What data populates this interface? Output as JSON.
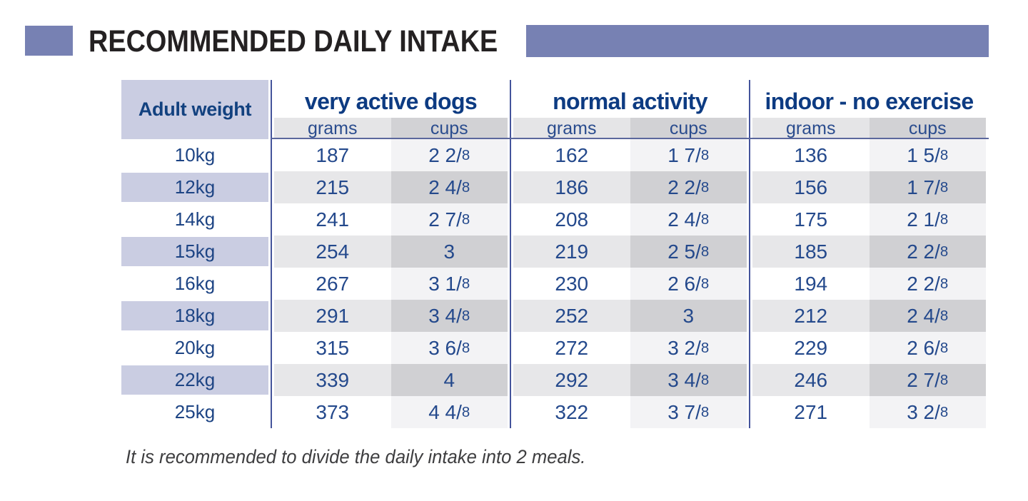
{
  "title": "RECOMMENDED DAILY INTAKE",
  "note": "It is recommended to divide the daily intake into 2 meals.",
  "colors": {
    "accent_purple": "#7781b3",
    "header_cell_purple": "#cacde2",
    "navy_text": "#15417f",
    "divider_navy": "#44549b",
    "subheader_grams_bg": "#e5e5e7",
    "subheader_cups_bg": "#d2d2d5",
    "shaded_row_grams_bg": "#e7e7e9",
    "shaded_row_cups_bg": "#d0d0d3",
    "light_cups_bg": "#f3f3f5"
  },
  "table": {
    "weight_header": "Adult weight",
    "groups": [
      {
        "label": "very active dogs"
      },
      {
        "label": "normal activity"
      },
      {
        "label": "indoor - no exercise"
      }
    ],
    "units": {
      "grams": "grams",
      "cups": "cups"
    },
    "rows": [
      {
        "weight": "10kg",
        "values": [
          {
            "grams": "187",
            "cups": "2 2/8"
          },
          {
            "grams": "162",
            "cups": "1 7/8"
          },
          {
            "grams": "136",
            "cups": "1 5/8"
          }
        ]
      },
      {
        "weight": "12kg",
        "values": [
          {
            "grams": "215",
            "cups": "2 4/8"
          },
          {
            "grams": "186",
            "cups": "2 2/8"
          },
          {
            "grams": "156",
            "cups": "1 7/8"
          }
        ]
      },
      {
        "weight": "14kg",
        "values": [
          {
            "grams": "241",
            "cups": "2 7/8"
          },
          {
            "grams": "208",
            "cups": "2 4/8"
          },
          {
            "grams": "175",
            "cups": "2 1/8"
          }
        ]
      },
      {
        "weight": "15kg",
        "values": [
          {
            "grams": "254",
            "cups": "3"
          },
          {
            "grams": "219",
            "cups": "2 5/8"
          },
          {
            "grams": "185",
            "cups": "2 2/8"
          }
        ]
      },
      {
        "weight": "16kg",
        "values": [
          {
            "grams": "267",
            "cups": "3 1/8"
          },
          {
            "grams": "230",
            "cups": "2 6/8"
          },
          {
            "grams": "194",
            "cups": "2 2/8"
          }
        ]
      },
      {
        "weight": "18kg",
        "values": [
          {
            "grams": "291",
            "cups": "3 4/8"
          },
          {
            "grams": "252",
            "cups": "3"
          },
          {
            "grams": "212",
            "cups": "2 4/8"
          }
        ]
      },
      {
        "weight": "20kg",
        "values": [
          {
            "grams": "315",
            "cups": "3 6/8"
          },
          {
            "grams": "272",
            "cups": "3 2/8"
          },
          {
            "grams": "229",
            "cups": "2 6/8"
          }
        ]
      },
      {
        "weight": "22kg",
        "values": [
          {
            "grams": "339",
            "cups": "4"
          },
          {
            "grams": "292",
            "cups": "3 4/8"
          },
          {
            "grams": "246",
            "cups": "2 7/8"
          }
        ]
      },
      {
        "weight": "25kg",
        "values": [
          {
            "grams": "373",
            "cups": "4 4/8"
          },
          {
            "grams": "322",
            "cups": "3 7/8"
          },
          {
            "grams": "271",
            "cups": "3 2/8"
          }
        ]
      }
    ]
  },
  "chart_data": {
    "type": "table",
    "title": "RECOMMENDED DAILY INTAKE",
    "columns": [
      "Adult weight",
      "very active dogs — grams",
      "very active dogs — cups",
      "normal activity — grams",
      "normal activity — cups",
      "indoor - no exercise — grams",
      "indoor - no exercise — cups"
    ],
    "rows": [
      [
        "10kg",
        187,
        "2 2/8",
        162,
        "1 7/8",
        136,
        "1 5/8"
      ],
      [
        "12kg",
        215,
        "2 4/8",
        186,
        "2 2/8",
        156,
        "1 7/8"
      ],
      [
        "14kg",
        241,
        "2 7/8",
        208,
        "2 4/8",
        175,
        "2 1/8"
      ],
      [
        "15kg",
        254,
        "3",
        219,
        "2 5/8",
        185,
        "2 2/8"
      ],
      [
        "16kg",
        267,
        "3 1/8",
        230,
        "2 6/8",
        194,
        "2 2/8"
      ],
      [
        "18kg",
        291,
        "3 4/8",
        252,
        "3",
        212,
        "2 4/8"
      ],
      [
        "20kg",
        315,
        "3 6/8",
        272,
        "3 2/8",
        229,
        "2 6/8"
      ],
      [
        "22kg",
        339,
        "4",
        292,
        "3 4/8",
        246,
        "2 7/8"
      ],
      [
        "25kg",
        373,
        "4 4/8",
        322,
        "3 7/8",
        271,
        "3 2/8"
      ]
    ],
    "footnote": "It is recommended to divide the daily intake into 2 meals."
  }
}
